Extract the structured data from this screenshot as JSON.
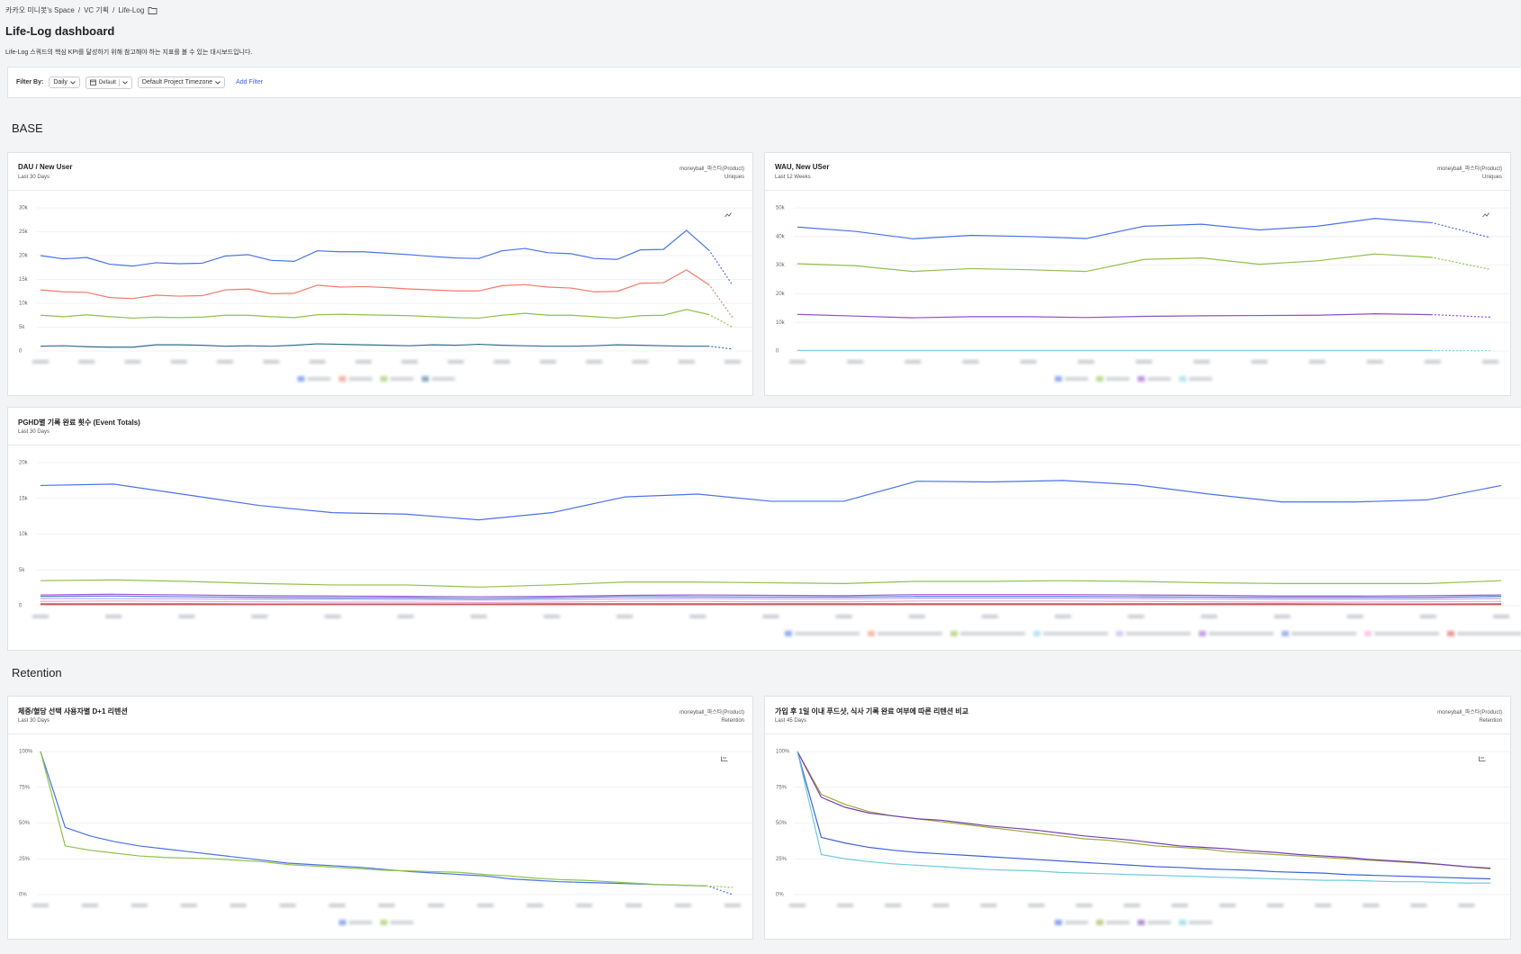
{
  "breadcrumb": {
    "items": [
      "카카오 미니봇's Space",
      "VC 기획",
      "Life-Log"
    ],
    "separator": "/"
  },
  "title": "Life-Log dashboard",
  "description": "Life-Log 스쿼드의 핵심 KPI를 달성하기 위해 참고해야 하는 지표를 볼 수 있는 대시보드입니다.",
  "filter": {
    "label": "Filter By:",
    "interval": "Daily",
    "date": "Default",
    "timezone": "Default Project Timezone",
    "add": "Add Filter"
  },
  "sections": [
    "BASE",
    "Retention"
  ],
  "chart_data": [
    {
      "type": "line",
      "title": "DAU / New User",
      "subtitle": "Last 30 Days",
      "source": "moneyball_파스타(Product)",
      "metric": "Uniques",
      "dashed_last": true,
      "grid": true,
      "ylim": [
        0,
        30000
      ],
      "yticks": [
        0,
        {
          "value": 5000,
          "label": "5k"
        },
        {
          "value": 10000,
          "label": "10k"
        },
        {
          "value": 15000,
          "label": "15k"
        },
        {
          "value": 20000,
          "label": "20k"
        },
        {
          "value": 25000,
          "label": "25k"
        },
        {
          "value": 30000,
          "label": "30k"
        }
      ],
      "series": [
        {
          "color": "#4a72e8",
          "values": [
            20000,
            19300,
            19600,
            18200,
            17800,
            18500,
            18300,
            18400,
            19900,
            20200,
            19000,
            18800,
            21000,
            20800,
            20800,
            20500,
            20200,
            19800,
            19500,
            19400,
            21000,
            21500,
            20600,
            20400,
            19400,
            19200,
            21200,
            21300,
            25300,
            21000,
            13800
          ]
        },
        {
          "color": "#f07b6a",
          "values": [
            12800,
            12400,
            12300,
            11200,
            11000,
            11700,
            11500,
            11600,
            12800,
            13000,
            12000,
            12100,
            13800,
            13400,
            13500,
            13300,
            13000,
            12800,
            12600,
            12600,
            13700,
            13900,
            13400,
            13200,
            12400,
            12500,
            14200,
            14300,
            17000,
            13800,
            7000
          ]
        },
        {
          "color": "#8fc24a",
          "values": [
            7500,
            7200,
            7600,
            7200,
            6900,
            7100,
            7000,
            7100,
            7500,
            7500,
            7200,
            7000,
            7600,
            7700,
            7600,
            7500,
            7400,
            7200,
            7000,
            6900,
            7500,
            7900,
            7500,
            7500,
            7200,
            6900,
            7400,
            7500,
            8700,
            7600,
            5000
          ]
        },
        {
          "color": "#2f6e8e",
          "values": [
            1000,
            1100,
            900,
            800,
            800,
            1300,
            1300,
            1200,
            1000,
            1100,
            1000,
            1200,
            1500,
            1400,
            1300,
            1200,
            1100,
            1300,
            1200,
            1400,
            1200,
            1100,
            1000,
            1000,
            1100,
            1300,
            1200,
            1100,
            1000,
            1000,
            400
          ]
        }
      ]
    },
    {
      "type": "line",
      "title": "WAU, New USer",
      "subtitle": "Last 12 Weeks",
      "source": "moneyball_파스타(Product)",
      "metric": "Uniques",
      "dashed_last": true,
      "grid": true,
      "ylim": [
        0,
        50000
      ],
      "yticks": [
        0,
        {
          "value": 10000,
          "label": "10k"
        },
        {
          "value": 20000,
          "label": "20k"
        },
        {
          "value": 30000,
          "label": "30k"
        },
        {
          "value": 40000,
          "label": "40k"
        },
        {
          "value": 50000,
          "label": "50k"
        }
      ],
      "series": [
        {
          "color": "#4a72e8",
          "values": [
            43300,
            41800,
            39200,
            40400,
            40000,
            39300,
            43600,
            44300,
            42300,
            43600,
            46300,
            44800,
            39600
          ]
        },
        {
          "color": "#8fc24a",
          "values": [
            30500,
            29800,
            27800,
            28800,
            28400,
            27800,
            32000,
            32500,
            30300,
            31500,
            33900,
            32700,
            28500
          ]
        },
        {
          "color": "#8e4fc9",
          "values": [
            12800,
            12200,
            11600,
            12000,
            12000,
            11700,
            12100,
            12300,
            12400,
            12500,
            13000,
            12700,
            11800
          ]
        },
        {
          "color": "#7fd3e6",
          "values": [
            200,
            200,
            200,
            200,
            200,
            200,
            200,
            200,
            200,
            200,
            200,
            200,
            100
          ]
        }
      ]
    },
    {
      "type": "line",
      "title": "PGHD별 기록 완료 횟수 (Event Totals)",
      "subtitle": "Last 30 Days",
      "dashed_last": false,
      "grid": true,
      "ylim": [
        0,
        20000
      ],
      "yticks": [
        0,
        {
          "value": 5000,
          "label": "5k"
        },
        {
          "value": 10000,
          "label": "10k"
        },
        {
          "value": 15000,
          "label": "15k"
        },
        {
          "value": 20000,
          "label": "20k"
        }
      ],
      "series": [
        {
          "color": "#4a72e8",
          "values": [
            16800,
            17000,
            15500,
            14000,
            13000,
            12800,
            12000,
            13000,
            15200,
            15600,
            14600,
            14600,
            17400,
            17300,
            17500,
            16900,
            15600,
            14500,
            14500,
            14800,
            16800
          ]
        },
        {
          "color": "#f08a6c",
          "values": [
            300,
            300,
            300,
            250,
            250,
            250,
            250,
            300,
            300,
            300,
            300,
            300,
            300,
            300,
            300,
            300,
            300,
            300,
            250,
            250,
            300
          ]
        },
        {
          "color": "#8fc24a",
          "values": [
            3500,
            3600,
            3400,
            3100,
            2900,
            2900,
            2600,
            2900,
            3300,
            3300,
            3200,
            3100,
            3400,
            3400,
            3500,
            3400,
            3200,
            3100,
            3100,
            3100,
            3500
          ]
        },
        {
          "color": "#7fd3e6",
          "values": [
            100,
            100,
            100,
            100,
            100,
            100,
            100,
            100,
            100,
            100,
            100,
            100,
            100,
            100,
            100,
            100,
            100,
            100,
            100,
            100,
            100
          ]
        },
        {
          "color": "#b7a6f0",
          "values": [
            1000,
            1000,
            950,
            900,
            900,
            850,
            800,
            850,
            950,
            1000,
            950,
            950,
            1050,
            1050,
            1050,
            1000,
            950,
            900,
            900,
            900,
            1000
          ]
        },
        {
          "color": "#9a5bd4",
          "values": [
            1500,
            1600,
            1500,
            1400,
            1350,
            1300,
            1250,
            1300,
            1450,
            1500,
            1450,
            1400,
            1550,
            1550,
            1550,
            1500,
            1450,
            1350,
            1350,
            1400,
            1500
          ]
        },
        {
          "color": "#5b7fd6",
          "values": [
            1300,
            1350,
            1250,
            1150,
            1100,
            1100,
            1000,
            1100,
            1250,
            1250,
            1200,
            1200,
            1300,
            1300,
            1300,
            1250,
            1200,
            1150,
            1150,
            1150,
            1300
          ]
        },
        {
          "color": "#f0a6d8",
          "values": [
            600,
            650,
            600,
            550,
            500,
            500,
            450,
            500,
            600,
            600,
            550,
            550,
            650,
            650,
            650,
            600,
            550,
            500,
            500,
            550,
            600
          ]
        },
        {
          "color": "#d9534f",
          "values": [
            200,
            200,
            200,
            200,
            200,
            200,
            200,
            200,
            200,
            200,
            200,
            200,
            200,
            200,
            200,
            200,
            200,
            200,
            200,
            200,
            200
          ]
        }
      ]
    },
    {
      "type": "line",
      "title": "체중/혈당 선택 사용자별 D+1 리텐션",
      "subtitle": "Last 30 Days",
      "source": "moneyball_파스타(Product)",
      "metric": "Retention",
      "dashed_last": true,
      "grid": true,
      "ylim": [
        0,
        100
      ],
      "yticks": [
        {
          "value": 0,
          "label": "0%"
        },
        {
          "value": 25,
          "label": "25%"
        },
        {
          "value": 50,
          "label": "50%"
        },
        {
          "value": 75,
          "label": "75%"
        },
        {
          "value": 100,
          "label": "100%"
        }
      ],
      "series": [
        {
          "color": "#4a72e8",
          "values": [
            100,
            47,
            41,
            37,
            34,
            32,
            30,
            28,
            26,
            24,
            22,
            21,
            20,
            19,
            17.5,
            16,
            15,
            14,
            13,
            11,
            10,
            9,
            8.5,
            8,
            7.5,
            7,
            6.5,
            6,
            0
          ]
        },
        {
          "color": "#8fc24a",
          "values": [
            100,
            34,
            31,
            29,
            27,
            26,
            25.5,
            25,
            24,
            23,
            21,
            20,
            19,
            18,
            17,
            16.5,
            16,
            15.5,
            14,
            13,
            11.5,
            10.5,
            10,
            9,
            8,
            7,
            6.5,
            6,
            5
          ]
        }
      ]
    },
    {
      "type": "line",
      "title": "가입 후 1일 이내 푸드샷, 식사 기록 완료 여부에 따른 리텐션 비교",
      "subtitle": "Last 45 Days",
      "source": "moneyball_파스타(Product)",
      "metric": "Retention",
      "dashed_last": false,
      "grid": true,
      "ylim": [
        0,
        100
      ],
      "yticks": [
        {
          "value": 0,
          "label": "0%"
        },
        {
          "value": 25,
          "label": "25%"
        },
        {
          "value": 50,
          "label": "50%"
        },
        {
          "value": 75,
          "label": "75%"
        },
        {
          "value": 100,
          "label": "100%"
        }
      ],
      "series": [
        {
          "color": "#3f62d8",
          "values": [
            100,
            40,
            36,
            33,
            31,
            29.5,
            28.5,
            27.5,
            26.5,
            25.5,
            24.5,
            23.5,
            22.5,
            21.5,
            20.5,
            19.5,
            19,
            18,
            17.5,
            17,
            16,
            15.5,
            15,
            14,
            13.5,
            13,
            12.5,
            12,
            11.5,
            11
          ]
        },
        {
          "color": "#9aab3a",
          "values": [
            100,
            70,
            63,
            58,
            55,
            53,
            51,
            49,
            47,
            45,
            43,
            41,
            39,
            38,
            36,
            34,
            33,
            32,
            30,
            29,
            28,
            27,
            26,
            25,
            24,
            23,
            22,
            21,
            19.5,
            18
          ]
        },
        {
          "color": "#7a3fb0",
          "values": [
            100,
            68,
            61,
            57,
            55,
            53,
            52,
            50,
            48,
            46.5,
            45,
            43,
            41,
            39.5,
            38,
            36,
            34,
            33,
            32,
            30.5,
            29.5,
            28,
            27,
            26,
            24.5,
            23.5,
            22.5,
            21,
            19.5,
            18.5
          ]
        },
        {
          "color": "#6fcbe0",
          "values": [
            100,
            28,
            25,
            23,
            21.5,
            20.5,
            19.5,
            18.5,
            17.5,
            17,
            16.5,
            15.5,
            15,
            14.5,
            14,
            13.5,
            13,
            12.5,
            12,
            11.5,
            11,
            10.5,
            10,
            10,
            9.5,
            9,
            9,
            8.5,
            8,
            8
          ]
        }
      ]
    }
  ]
}
